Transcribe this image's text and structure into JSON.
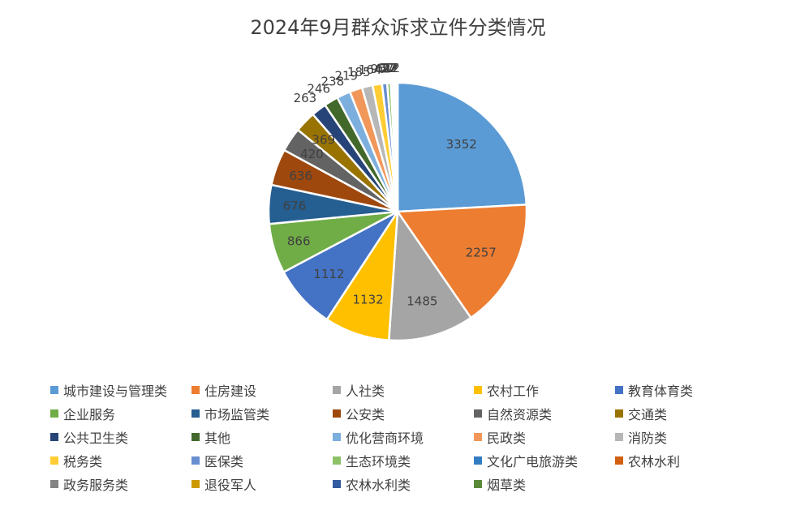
{
  "chart_data": {
    "type": "pie",
    "title": "2024年9月群众诉求立件分类情况",
    "legend_position": "bottom",
    "slices": [
      {
        "label": "城市建设与管理类",
        "value": 3352,
        "color": "#5B9BD5"
      },
      {
        "label": "住房建设",
        "value": 2257,
        "color": "#ED7D31"
      },
      {
        "label": "人社类",
        "value": 1485,
        "color": "#A5A5A5"
      },
      {
        "label": "农村工作",
        "value": 1132,
        "color": "#FFC000"
      },
      {
        "label": "教育体育类",
        "value": 1112,
        "color": "#4472C4"
      },
      {
        "label": "企业服务",
        "value": 866,
        "color": "#70AD47"
      },
      {
        "label": "市场监管类",
        "value": 676,
        "color": "#255E91"
      },
      {
        "label": "公安类",
        "value": 636,
        "color": "#9E480E"
      },
      {
        "label": "自然资源类",
        "value": 420,
        "color": "#636363"
      },
      {
        "label": "交通类",
        "value": 369,
        "color": "#997300"
      },
      {
        "label": "公共卫生类",
        "value": 263,
        "color": "#264478"
      },
      {
        "label": "其他",
        "value": 246,
        "color": "#43682B"
      },
      {
        "label": "优化营商环境",
        "value": 238,
        "color": "#7CAFDD"
      },
      {
        "label": "民政类",
        "value": 219,
        "color": "#F1975A"
      },
      {
        "label": "消防类",
        "value": 185,
        "color": "#B7B7B7"
      },
      {
        "label": "税务类",
        "value": 164,
        "color": "#FFCD33"
      },
      {
        "label": "医保类",
        "value": 90,
        "color": "#698ED0"
      },
      {
        "label": "生态环境类",
        "value": 62,
        "color": "#8CC168"
      },
      {
        "label": "文化广电旅游类",
        "value": 37,
        "color": "#327DC2"
      },
      {
        "label": "农林水利",
        "value": 27,
        "color": "#D26012"
      },
      {
        "label": "政务服务类",
        "value": 22,
        "color": "#848484"
      },
      {
        "label": "退役军人",
        "value": 17,
        "color": "#CC9A00"
      },
      {
        "label": "农林水利类",
        "value": 12,
        "color": "#335AA1"
      },
      {
        "label": "烟草类",
        "value": 2,
        "color": "#5A8A39"
      }
    ]
  }
}
